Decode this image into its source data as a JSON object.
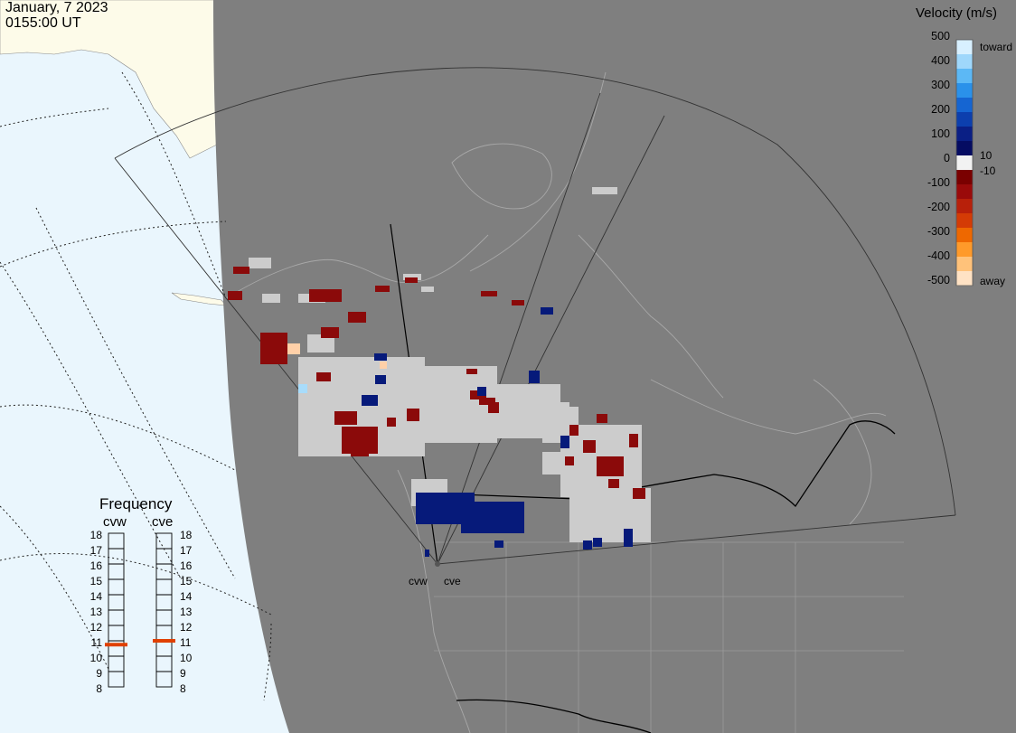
{
  "header": {
    "date": "January, 7 2023",
    "time": "0155:00 UT"
  },
  "colorbar": {
    "title": "Velocity (m/s)",
    "ticks": [
      "500",
      "400",
      "300",
      "200",
      "100",
      "0",
      "-100",
      "-200",
      "-300",
      "-400",
      "-500"
    ],
    "inner_pos": "10",
    "inner_neg": "-10",
    "toward_label": "toward",
    "away_label": "away",
    "colors": [
      "#d8f0ff",
      "#9fd7fb",
      "#5cb8f5",
      "#2a91ea",
      "#1565d2",
      "#0c3fae",
      "#0a1f85",
      "#050c62",
      "#f2f2f2",
      "#7a0000",
      "#9a0a0a",
      "#b8200a",
      "#d43b05",
      "#ee6800",
      "#ff9a2a",
      "#ffc27a",
      "#ffe2c4"
    ]
  },
  "frequency": {
    "title": "Frequency",
    "radars": [
      "cvw",
      "cve"
    ],
    "scale": [
      "18",
      "17",
      "16",
      "15",
      "14",
      "13",
      "12",
      "11",
      "10",
      "9",
      "8"
    ],
    "cvw_mhz": 10.75,
    "cve_mhz": 11.0
  },
  "radar_sites": [
    "cvw",
    "cve"
  ],
  "colors": {
    "ocean": "#eaf6fd",
    "land_day": "#fdfbe9",
    "night": "#7f7f7f",
    "scatter_ground": "#cccccc"
  }
}
